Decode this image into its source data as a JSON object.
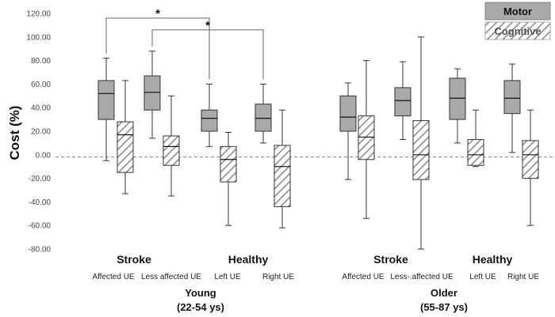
{
  "chart_data": {
    "type": "boxplot",
    "ylabel": "Cost (%)",
    "ylim": [
      -80,
      120
    ],
    "yticks": [
      "120.00",
      "100.00",
      "80.00",
      "60.00",
      "40.00",
      "20.00",
      "0.00",
      "-20.00",
      "-40.00",
      "-60.00",
      "-80.00"
    ],
    "reference_line": -2,
    "legend": [
      {
        "name": "Motor",
        "pattern": "solid",
        "color": "#a9a9a9"
      },
      {
        "name": "Cognitive",
        "pattern": "hatched",
        "color": "#9a9a9a"
      }
    ],
    "age_groups": [
      {
        "label": "Young",
        "range": "(22-54 ys)"
      },
      {
        "label": "Older",
        "range": "(55-87 ys)"
      }
    ],
    "groups": [
      {
        "label": "Stroke",
        "age": "Young",
        "subgroups": [
          "Affected UE",
          "Less affected UE"
        ]
      },
      {
        "label": "Healthy",
        "age": "Young",
        "subgroups": [
          "Left UE",
          "Right UE"
        ]
      },
      {
        "label": "Stroke",
        "age": "Older",
        "subgroups": [
          "Affected UE",
          "Less-.affected UE"
        ]
      },
      {
        "label": "Healthy",
        "age": "Older",
        "subgroups": [
          "Left UE",
          "Right UE"
        ]
      }
    ],
    "boxes": [
      {
        "category": "Affected UE",
        "age": "Young",
        "series": "Motor",
        "min": -5,
        "q1": 30,
        "median": 52,
        "q3": 63,
        "max": 82
      },
      {
        "category": "Affected UE",
        "age": "Young",
        "series": "Cognitive",
        "min": -33,
        "q1": -15,
        "median": 17,
        "q3": 28,
        "max": 63
      },
      {
        "category": "Less affected UE",
        "age": "Young",
        "series": "Motor",
        "min": 14,
        "q1": 38,
        "median": 53,
        "q3": 67,
        "max": 88
      },
      {
        "category": "Less affected UE",
        "age": "Young",
        "series": "Cognitive",
        "min": -35,
        "q1": -9,
        "median": 7,
        "q3": 16,
        "max": 50
      },
      {
        "category": "Left UE",
        "age": "Young",
        "series": "Motor",
        "min": 7,
        "q1": 20,
        "median": 31,
        "q3": 38,
        "max": 60
      },
      {
        "category": "Left UE",
        "age": "Young",
        "series": "Cognitive",
        "min": -60,
        "q1": -23,
        "median": -4,
        "q3": 7,
        "max": 19
      },
      {
        "category": "Right UE",
        "age": "Young",
        "series": "Motor",
        "min": 10,
        "q1": 20,
        "median": 31,
        "q3": 43,
        "max": 60
      },
      {
        "category": "Right UE",
        "age": "Young",
        "series": "Cognitive",
        "min": -62,
        "q1": -44,
        "median": -10,
        "q3": 8,
        "max": 38
      },
      {
        "category": "Affected UE",
        "age": "Older",
        "series": "Motor",
        "min": -21,
        "q1": 20,
        "median": 32,
        "q3": 50,
        "max": 61
      },
      {
        "category": "Affected UE",
        "age": "Older",
        "series": "Cognitive",
        "min": -54,
        "q1": -4,
        "median": 15,
        "q3": 33,
        "max": 80
      },
      {
        "category": "Less-.affected UE",
        "age": "Older",
        "series": "Motor",
        "min": 13,
        "q1": 33,
        "median": 46,
        "q3": 57,
        "max": 79
      },
      {
        "category": "Less-.affected UE",
        "age": "Older",
        "series": "Cognitive",
        "min": -80,
        "q1": -21,
        "median": 0,
        "q3": 29,
        "max": 100
      },
      {
        "category": "Left UE",
        "age": "Older",
        "series": "Motor",
        "min": 10,
        "q1": 30,
        "median": 48,
        "q3": 65,
        "max": 73
      },
      {
        "category": "Left UE",
        "age": "Older",
        "series": "Cognitive",
        "min": -10,
        "q1": -9,
        "median": 0,
        "q3": 13,
        "max": 38
      },
      {
        "category": "Right UE",
        "age": "Older",
        "series": "Motor",
        "min": 2,
        "q1": 35,
        "median": 48,
        "q3": 63,
        "max": 77
      },
      {
        "category": "Right UE",
        "age": "Older",
        "series": "Cognitive",
        "min": -60,
        "q1": -20,
        "median": 0,
        "q3": 12,
        "max": 38
      }
    ],
    "significance": [
      {
        "label": "*",
        "from_box": 0,
        "to_box": 4,
        "level": 116
      },
      {
        "label": "*",
        "from_box": 2,
        "to_box": 6,
        "level": 106
      }
    ]
  }
}
